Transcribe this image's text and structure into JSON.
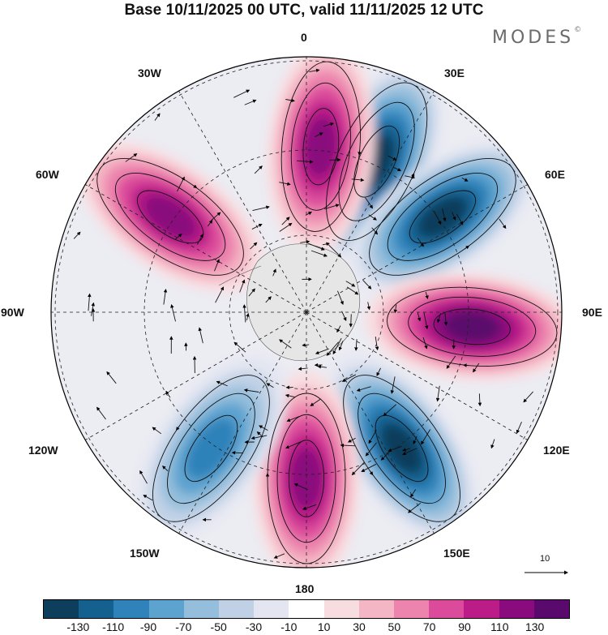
{
  "title": "Base 10/11/2025 00 UTC, valid 11/11/2025 12 UTC",
  "brand": {
    "name": "MODES",
    "mark": "©"
  },
  "map": {
    "projection": "south-polar-stereographic",
    "longitude_labels": [
      "0",
      "30E",
      "60E",
      "90E",
      "120E",
      "150E",
      "180",
      "150W",
      "120W",
      "90W",
      "60W",
      "30W"
    ],
    "vector_reference": "10"
  },
  "colorbar": {
    "ticks": [
      "-130",
      "-110",
      "-90",
      "-70",
      "-50",
      "-30",
      "-10",
      "10",
      "30",
      "50",
      "70",
      "90",
      "110",
      "130"
    ],
    "colors": [
      "#0d3e5c",
      "#14608f",
      "#2f82ba",
      "#5da3cf",
      "#94bedb",
      "#c0d1e6",
      "#e3e6f1",
      "#ffffff",
      "#f8dde0",
      "#f4b5c4",
      "#ec84ae",
      "#dc4b9b",
      "#bb1c88",
      "#8a0b7d",
      "#5a0a6c"
    ]
  },
  "chart_data": {
    "type": "contour",
    "variable": "anomaly field with wind streamlines",
    "levels": [
      -130,
      -110,
      -90,
      -70,
      -50,
      -30,
      -10,
      10,
      30,
      50,
      70,
      90,
      110,
      130
    ],
    "centers": [
      {
        "sign": "negative",
        "lon": 25,
        "max_abs": 130
      },
      {
        "sign": "positive",
        "lon": 5,
        "max_abs": 120
      },
      {
        "sign": "positive",
        "lon": -55,
        "max_abs": 110
      },
      {
        "sign": "negative",
        "lon": 55,
        "max_abs": 130
      },
      {
        "sign": "positive",
        "lon": 95,
        "max_abs": 130
      },
      {
        "sign": "negative",
        "lon": 145,
        "max_abs": 130
      },
      {
        "sign": "positive",
        "lon": 180,
        "max_abs": 110
      },
      {
        "sign": "negative",
        "lon": -145,
        "max_abs": 90
      }
    ]
  }
}
